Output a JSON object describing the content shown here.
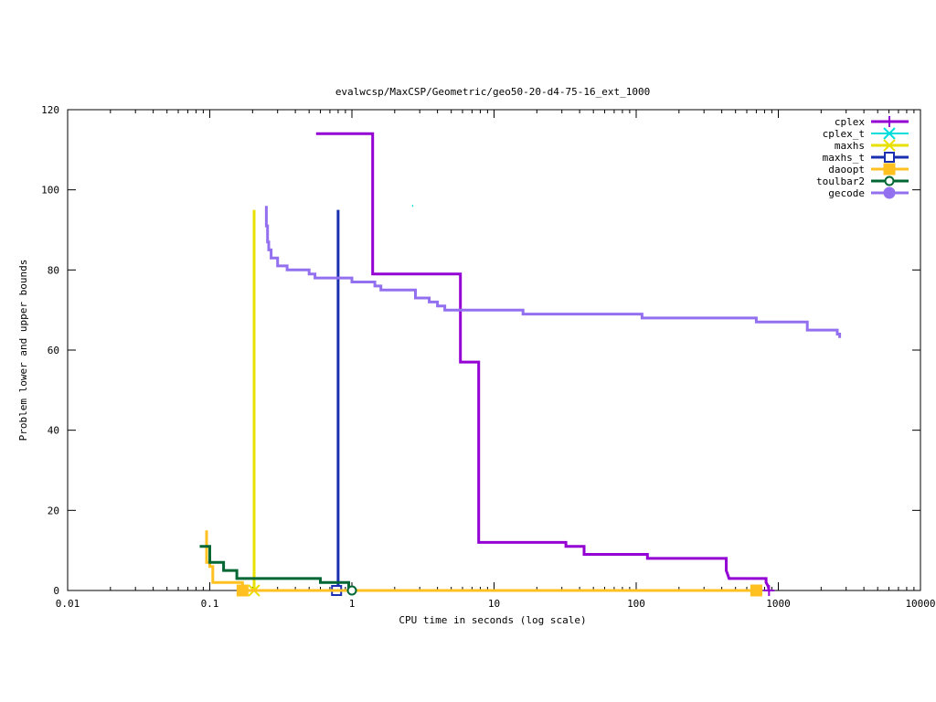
{
  "chart_data": {
    "type": "line",
    "title": "evalwcsp/MaxCSP/Geometric/geo50-20-d4-75-16_ext_1000",
    "xlabel": "CPU time in seconds (log scale)",
    "ylabel": "Problem lower and upper bounds",
    "x_scale": "log",
    "xlim": [
      0.01,
      10000
    ],
    "ylim": [
      0,
      120
    ],
    "x_ticks": [
      0.01,
      0.1,
      1,
      10,
      100,
      1000,
      10000
    ],
    "x_tick_labels": [
      "0.01",
      "0.1",
      "1",
      "10",
      "100",
      "1000",
      "10000"
    ],
    "y_ticks": [
      0,
      20,
      40,
      60,
      80,
      100,
      120
    ],
    "y_tick_labels": [
      "0",
      "20",
      "40",
      "60",
      "80",
      "100",
      "120"
    ],
    "grid": false,
    "legend_position": "top-right",
    "series": [
      {
        "name": "cplex",
        "color": "#9400d3",
        "marker": "plus",
        "width": 3,
        "points": [
          [
            0.56,
            114
          ],
          [
            1.4,
            114
          ],
          [
            1.4,
            79
          ],
          [
            5.8,
            79
          ],
          [
            5.8,
            57
          ],
          [
            7.8,
            57
          ],
          [
            7.8,
            12
          ],
          [
            32,
            12
          ],
          [
            32,
            11
          ],
          [
            43,
            11
          ],
          [
            43,
            9
          ],
          [
            120,
            9
          ],
          [
            120,
            8
          ],
          [
            430,
            8
          ],
          [
            430,
            5
          ],
          [
            440,
            4
          ],
          [
            450,
            3
          ],
          [
            820,
            3
          ],
          [
            820,
            2
          ],
          [
            850,
            1
          ],
          [
            860,
            0
          ]
        ],
        "marker_at": [
          [
            860,
            0
          ]
        ]
      },
      {
        "name": "cplex_t",
        "color": "#00dddd",
        "marker": "x",
        "width": 2,
        "points": [
          [
            2.65,
            96
          ],
          [
            2.7,
            96
          ]
        ],
        "marker_at": []
      },
      {
        "name": "maxhs",
        "color": "#e8e000",
        "marker": "x",
        "width": 3,
        "points": [
          [
            0.205,
            95
          ],
          [
            0.205,
            0
          ]
        ],
        "marker_at": [
          [
            0.205,
            0
          ]
        ]
      },
      {
        "name": "maxhs_t",
        "color": "#1a2fb0",
        "marker": "square",
        "width": 3,
        "points": [
          [
            0.8,
            0
          ],
          [
            0.8,
            95
          ]
        ],
        "marker_at": [
          [
            0.78,
            0
          ]
        ]
      },
      {
        "name": "daoopt",
        "color": "#ffc020",
        "marker": "filled-square",
        "width": 3,
        "points": [
          [
            0.095,
            15
          ],
          [
            0.095,
            7
          ],
          [
            0.1,
            7
          ],
          [
            0.1,
            6
          ],
          [
            0.105,
            6
          ],
          [
            0.105,
            2
          ],
          [
            0.17,
            2
          ],
          [
            0.17,
            0
          ],
          [
            700,
            0
          ]
        ],
        "marker_at": [
          [
            0.17,
            0
          ],
          [
            700,
            0
          ]
        ]
      },
      {
        "name": "toulbar2",
        "color": "#006633",
        "marker": "circle",
        "width": 3,
        "points": [
          [
            0.085,
            11
          ],
          [
            0.1,
            11
          ],
          [
            0.1,
            7
          ],
          [
            0.125,
            7
          ],
          [
            0.125,
            5
          ],
          [
            0.155,
            5
          ],
          [
            0.155,
            3
          ],
          [
            0.6,
            3
          ],
          [
            0.6,
            2
          ],
          [
            0.95,
            2
          ],
          [
            0.95,
            0
          ],
          [
            1.0,
            0
          ]
        ],
        "marker_at": [
          [
            1.0,
            0
          ]
        ]
      },
      {
        "name": "gecode",
        "color": "#9370f0",
        "marker": "filled-circle",
        "width": 3,
        "points": [
          [
            0.25,
            96
          ],
          [
            0.25,
            91
          ],
          [
            0.255,
            91
          ],
          [
            0.255,
            87
          ],
          [
            0.26,
            87
          ],
          [
            0.26,
            85
          ],
          [
            0.27,
            85
          ],
          [
            0.27,
            83
          ],
          [
            0.3,
            83
          ],
          [
            0.3,
            81
          ],
          [
            0.35,
            81
          ],
          [
            0.35,
            80
          ],
          [
            0.5,
            80
          ],
          [
            0.5,
            79
          ],
          [
            0.55,
            79
          ],
          [
            0.55,
            78
          ],
          [
            1.0,
            78
          ],
          [
            1.0,
            77
          ],
          [
            1.45,
            77
          ],
          [
            1.45,
            76
          ],
          [
            1.6,
            76
          ],
          [
            1.6,
            75
          ],
          [
            2.8,
            75
          ],
          [
            2.8,
            73
          ],
          [
            3.5,
            73
          ],
          [
            3.5,
            72
          ],
          [
            4.0,
            72
          ],
          [
            4.0,
            71
          ],
          [
            4.5,
            71
          ],
          [
            4.5,
            70
          ],
          [
            16,
            70
          ],
          [
            16,
            69
          ],
          [
            110,
            69
          ],
          [
            110,
            68
          ],
          [
            700,
            68
          ],
          [
            700,
            67
          ],
          [
            1600,
            67
          ],
          [
            1600,
            65
          ],
          [
            2600,
            65
          ],
          [
            2600,
            64
          ],
          [
            2700,
            64
          ],
          [
            2700,
            63
          ]
        ],
        "marker_at": []
      }
    ]
  }
}
